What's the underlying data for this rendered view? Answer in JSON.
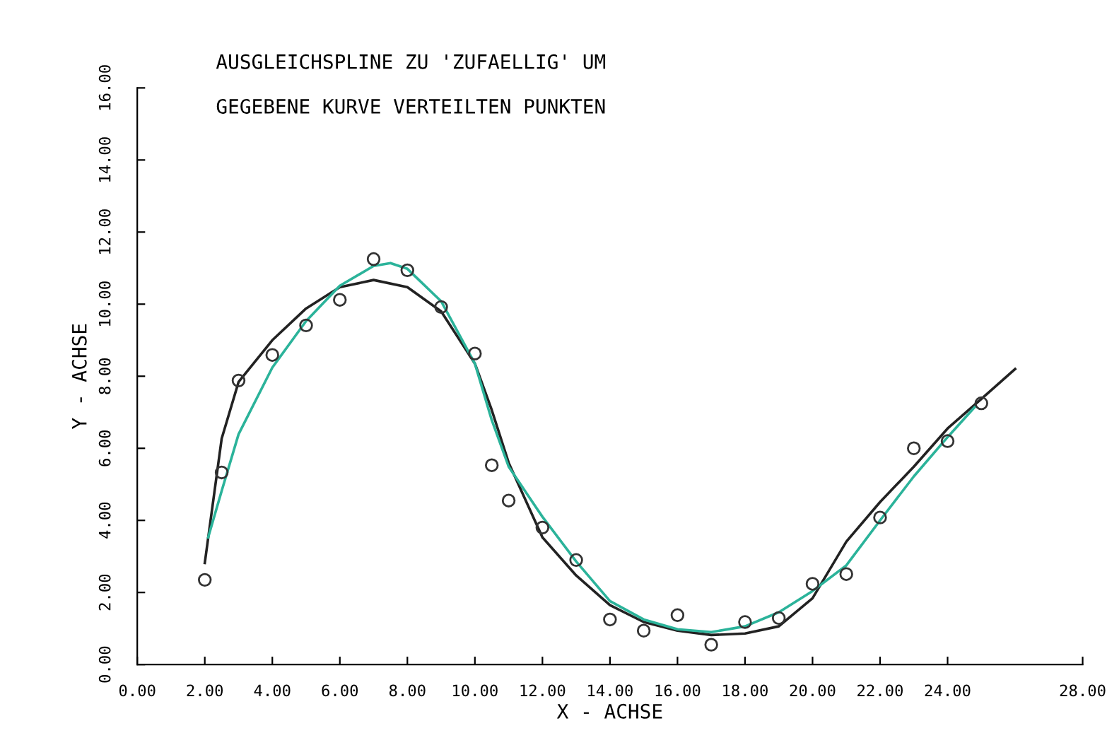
{
  "chart_data": {
    "type": "scatter",
    "title": "AUSGLEICHSPLINE ZU 'ZUFAELLIG' UM",
    "subtitle": "GEGEBENE KURVE VERTEILTEN PUNKTEN",
    "xlabel": "X - ACHSE",
    "ylabel": "Y - ACHSE",
    "xlim": [
      0,
      28
    ],
    "xticks": [
      {
        "value": 0,
        "label": "0.00"
      },
      {
        "value": 2,
        "label": "2.00"
      },
      {
        "value": 4,
        "label": "4.00"
      },
      {
        "value": 6,
        "label": "6.00"
      },
      {
        "value": 8,
        "label": "8.00"
      },
      {
        "value": 10,
        "label": "10.00"
      },
      {
        "value": 12,
        "label": "12.00"
      },
      {
        "value": 14,
        "label": "14.00"
      },
      {
        "value": 16,
        "label": "16.00"
      },
      {
        "value": 18,
        "label": "18.00"
      },
      {
        "value": 20,
        "label": "20.00"
      },
      {
        "value": 22,
        "label": "22.00"
      },
      {
        "value": 24,
        "label": "24.00"
      },
      {
        "value": 28,
        "label": "28.00"
      }
    ],
    "ylim": [
      0,
      16
    ],
    "yticks": [
      {
        "value": 0,
        "label": "0.00"
      },
      {
        "value": 2,
        "label": "2.00"
      },
      {
        "value": 4,
        "label": "4.00"
      },
      {
        "value": 6,
        "label": "6.00"
      },
      {
        "value": 8,
        "label": "8.00"
      },
      {
        "value": 10,
        "label": "10.00"
      },
      {
        "value": 12,
        "label": "12.00"
      },
      {
        "value": 14,
        "label": "14.00"
      },
      {
        "value": 16,
        "label": "16.00"
      }
    ],
    "grid": false,
    "legend": false,
    "series": [
      {
        "type": "scatter",
        "color": "#333333",
        "marker": "circle",
        "x": [
          2,
          2.5,
          3,
          4,
          5,
          6,
          7,
          8,
          9,
          10,
          10.5,
          11,
          12,
          13,
          14,
          15,
          16,
          17,
          18,
          19,
          20,
          21,
          22,
          23,
          24,
          25
        ],
        "values": [
          2.35,
          5.33,
          7.88,
          8.59,
          9.41,
          10.12,
          11.25,
          10.94,
          9.92,
          8.63,
          5.53,
          4.55,
          3.8,
          2.9,
          1.25,
          0.94,
          1.37,
          0.55,
          1.18,
          1.29,
          2.24,
          2.51,
          4.08,
          6.0,
          6.2,
          7.25
        ]
      },
      {
        "type": "line",
        "color": "#222222",
        "line_style": "solid",
        "x": [
          2,
          2.5,
          3,
          4,
          5,
          6,
          7,
          8,
          9,
          10,
          10.5,
          11,
          12,
          13,
          14,
          15,
          16,
          17,
          18,
          19,
          20,
          21,
          22,
          23,
          24,
          25,
          26
        ],
        "values": [
          2.82,
          6.27,
          7.84,
          9.0,
          9.88,
          10.47,
          10.67,
          10.47,
          9.8,
          8.35,
          7.06,
          5.6,
          3.53,
          2.47,
          1.65,
          1.18,
          0.94,
          0.82,
          0.86,
          1.06,
          1.84,
          3.41,
          4.51,
          5.49,
          6.55,
          7.37,
          8.2
        ]
      },
      {
        "type": "line",
        "color": "#2bb39a",
        "line_style": "solid",
        "x": [
          2.1,
          2.5,
          3,
          4,
          5,
          6,
          7,
          7.5,
          8,
          9,
          10,
          10.5,
          11,
          12,
          13,
          14,
          15,
          16,
          17,
          18,
          19,
          20,
          21,
          22,
          23,
          24,
          24.8
        ],
        "values": [
          3.53,
          4.82,
          6.39,
          8.24,
          9.53,
          10.51,
          11.06,
          11.14,
          10.98,
          10.08,
          8.35,
          6.78,
          5.49,
          4.1,
          2.86,
          1.76,
          1.25,
          0.98,
          0.9,
          1.06,
          1.45,
          2.04,
          2.75,
          4.0,
          5.22,
          6.31,
          7.14
        ]
      }
    ]
  }
}
